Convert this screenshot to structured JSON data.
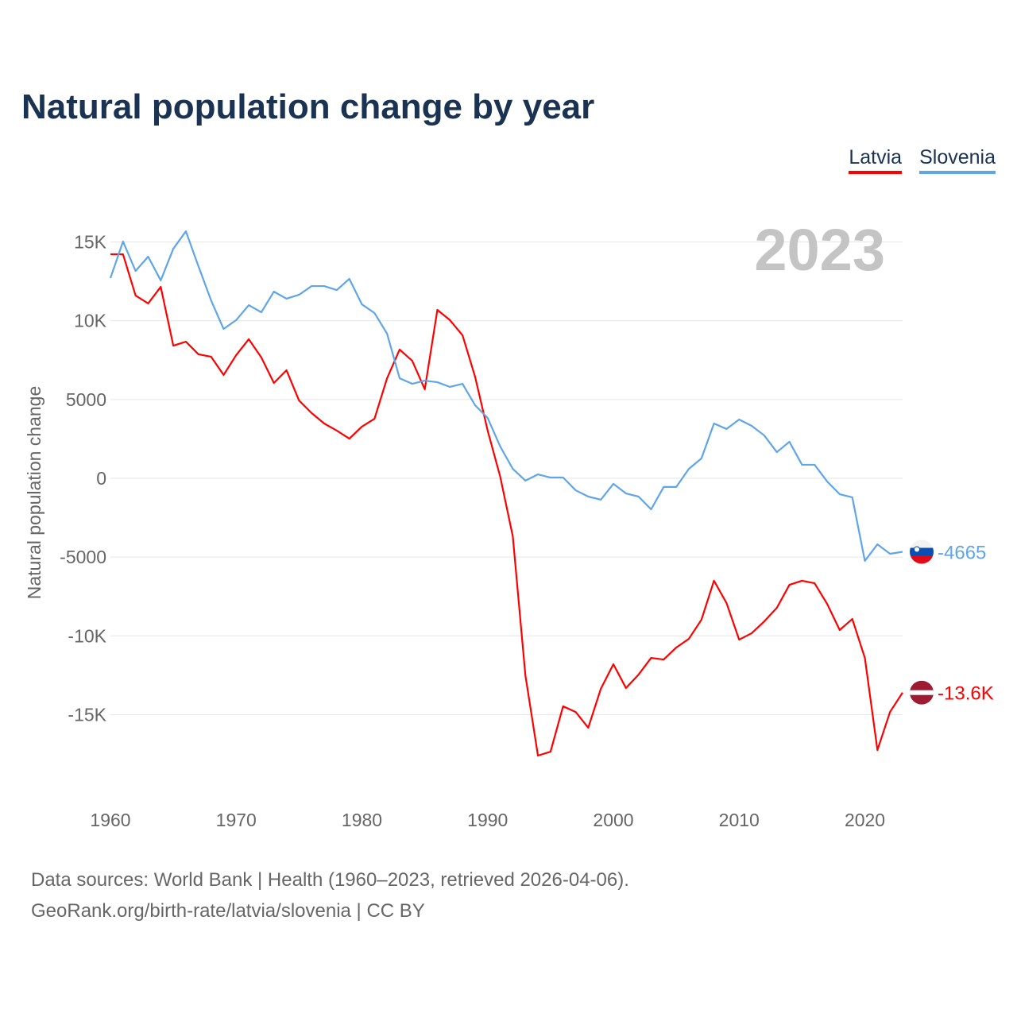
{
  "chart_data": {
    "type": "line",
    "title": "Natural population change by year",
    "xlabel": "",
    "ylabel": "Natural population change",
    "year_label": "2023",
    "xlim": [
      1960,
      2023
    ],
    "ylim": [
      -20000,
      16000
    ],
    "grid": true,
    "legend_position": "top-right",
    "x_ticks": [
      1960,
      1970,
      1980,
      1990,
      2000,
      2010,
      2020
    ],
    "x_tick_labels": [
      "1960",
      "1970",
      "1980",
      "1990",
      "2000",
      "2010",
      "2020"
    ],
    "y_ticks": [
      15000,
      10000,
      5000,
      0,
      -5000,
      -10000,
      -15000
    ],
    "y_tick_labels": [
      "15K",
      "10K",
      "5000",
      "0",
      "-5000",
      "-10K",
      "-15K"
    ],
    "x": [
      1960,
      1961,
      1962,
      1963,
      1964,
      1965,
      1966,
      1967,
      1968,
      1969,
      1970,
      1971,
      1972,
      1973,
      1974,
      1975,
      1976,
      1977,
      1978,
      1979,
      1980,
      1981,
      1982,
      1983,
      1984,
      1985,
      1986,
      1987,
      1988,
      1989,
      1990,
      1991,
      1992,
      1993,
      1994,
      1995,
      1996,
      1997,
      1998,
      1999,
      2000,
      2001,
      2002,
      2003,
      2004,
      2005,
      2006,
      2007,
      2008,
      2009,
      2010,
      2011,
      2012,
      2013,
      2014,
      2015,
      2016,
      2017,
      2018,
      2019,
      2020,
      2021,
      2022,
      2023
    ],
    "series": [
      {
        "name": "Latvia",
        "color": "#ff0000",
        "end_label": "-13.6K",
        "values": [
          14220,
          14220,
          11600,
          11100,
          12150,
          8420,
          8670,
          7870,
          7720,
          6560,
          7820,
          8830,
          7670,
          6050,
          6860,
          4940,
          4140,
          3480,
          3030,
          2520,
          3280,
          3780,
          6350,
          8170,
          7460,
          5650,
          10690,
          10040,
          9080,
          6450,
          3030,
          100,
          -3680,
          -12500,
          -17600,
          -17350,
          -14470,
          -14830,
          -15830,
          -13360,
          -11800,
          -13310,
          -12460,
          -11400,
          -11500,
          -10740,
          -10190,
          -8980,
          -6500,
          -7920,
          -10240,
          -9830,
          -9080,
          -8220,
          -6760,
          -6500,
          -6660,
          -7970,
          -9630,
          -8930,
          -11400,
          -17250,
          -14830,
          -13600
        ]
      },
      {
        "name": "Slovenia",
        "color": "#5ea5ea",
        "end_label": "-4665",
        "values": [
          12710,
          15030,
          13160,
          14070,
          12560,
          14570,
          15680,
          13460,
          11300,
          9480,
          10040,
          10990,
          10540,
          11850,
          11400,
          11650,
          12200,
          12200,
          11950,
          12660,
          11040,
          10490,
          9180,
          6350,
          6000,
          6200,
          6100,
          5800,
          6000,
          4640,
          3830,
          2020,
          600,
          -150,
          250,
          50,
          50,
          -760,
          -1160,
          -1360,
          -350,
          -960,
          -1160,
          -1970,
          -550,
          -550,
          600,
          1260,
          3480,
          3130,
          3730,
          3330,
          2720,
          1660,
          2320,
          860,
          860,
          -200,
          -1010,
          -1210,
          -5240,
          -4190,
          -4790,
          -4665
        ]
      }
    ]
  },
  "source": {
    "line1": "Data sources: World Bank | Health (1960–2023, retrieved 2026-04-06).",
    "line2": "GeoRank.org/birth-rate/latvia/slovenia | CC BY"
  }
}
